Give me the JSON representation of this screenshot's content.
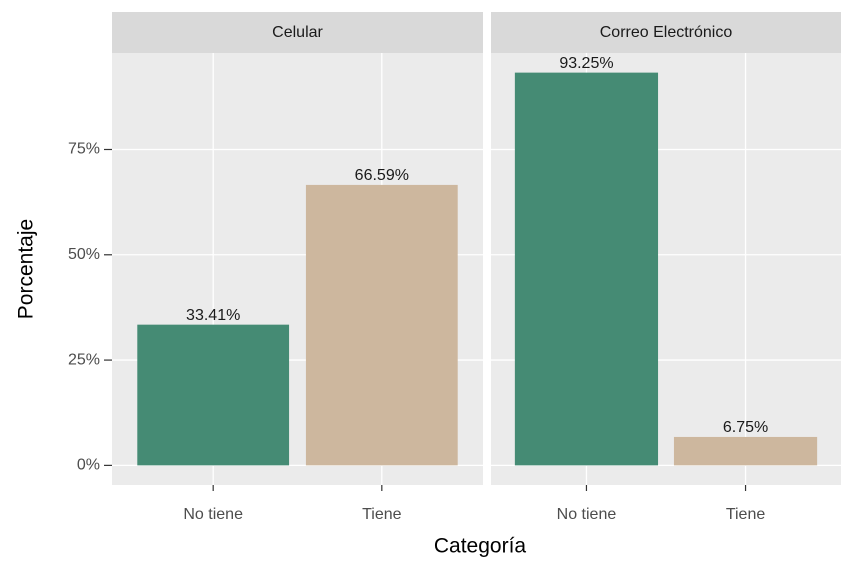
{
  "chart_data": {
    "type": "bar",
    "xlabel": "Categoría",
    "ylabel": "Porcentaje",
    "ylim": [
      -4.66,
      97.91
    ],
    "yticks": [
      {
        "value": 0,
        "label": "0%"
      },
      {
        "value": 25,
        "label": "25%"
      },
      {
        "value": 50,
        "label": "50%"
      },
      {
        "value": 75,
        "label": "75%"
      }
    ],
    "grid": true,
    "colors": [
      "#458B74",
      "#CDB79E"
    ],
    "facets": [
      {
        "title": "Celular",
        "categories": [
          "No tiene",
          "Tiene"
        ],
        "values": [
          33.41,
          66.59
        ],
        "value_labels": [
          "33.41%",
          "66.59%"
        ]
      },
      {
        "title": "Correo Electrónico",
        "categories": [
          "No tiene",
          "Tiene"
        ],
        "values": [
          93.25,
          6.75
        ],
        "value_labels": [
          "93.25%",
          "6.75%"
        ]
      }
    ]
  }
}
